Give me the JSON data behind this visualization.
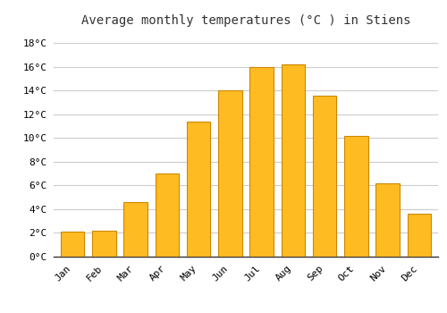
{
  "title": "Average monthly temperatures (°C ) in Stiens",
  "months": [
    "Jan",
    "Feb",
    "Mar",
    "Apr",
    "May",
    "Jun",
    "Jul",
    "Aug",
    "Sep",
    "Oct",
    "Nov",
    "Dec"
  ],
  "temperatures": [
    2.1,
    2.2,
    4.6,
    7.0,
    11.4,
    14.0,
    16.0,
    16.2,
    13.6,
    10.2,
    6.2,
    3.6
  ],
  "bar_color_face": "#FFBB22",
  "bar_color_edge": "#CC8800",
  "bar_width": 0.75,
  "ylim": [
    0,
    19
  ],
  "yticks": [
    0,
    2,
    4,
    6,
    8,
    10,
    12,
    14,
    16,
    18
  ],
  "ytick_labels": [
    "0°C",
    "2°C",
    "4°C",
    "6°C",
    "8°C",
    "10°C",
    "12°C",
    "14°C",
    "16°C",
    "18°C"
  ],
  "background_color": "#FFFFFF",
  "grid_color": "#CCCCCC",
  "title_fontsize": 10,
  "tick_fontsize": 8
}
